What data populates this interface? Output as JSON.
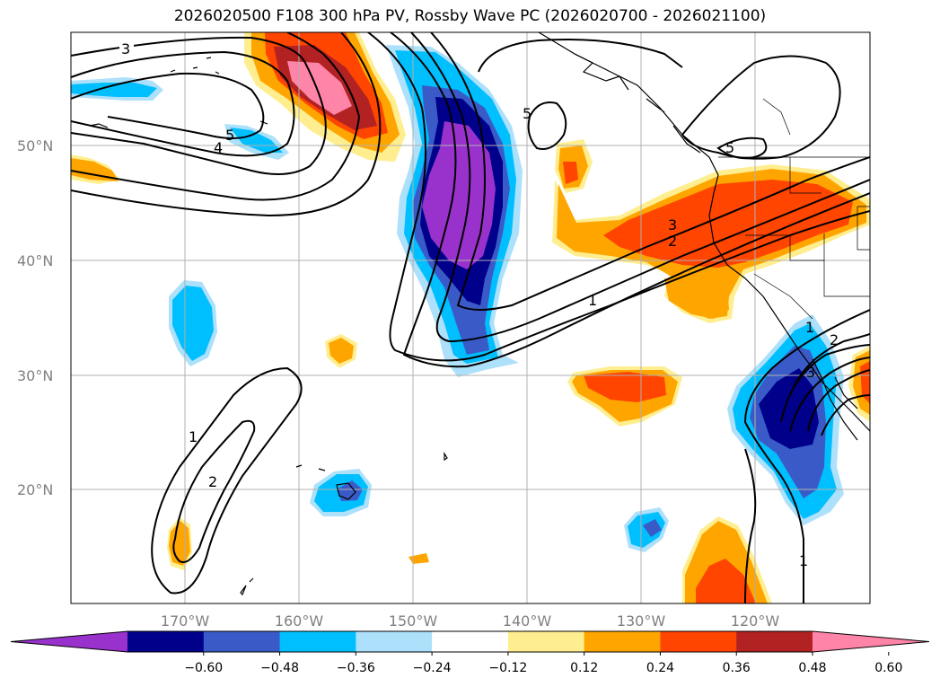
{
  "title": "2026020500 F108 300 hPa PV, Rossby Wave PC (2026020700 - 2026021100)",
  "lat_labels": [
    "50°N",
    "40°N",
    "30°N",
    "20°N"
  ],
  "lon_labels": [
    "170°W",
    "160°W",
    "150°W",
    "140°W",
    "130°W",
    "120°W"
  ],
  "colorbar": {
    "colors": [
      "#9932CC",
      "#00008B",
      "#3A5BC7",
      "#00BFFF",
      "#ADE0FA",
      "#FFFFFF",
      "#FFEE8F",
      "#FFA500",
      "#FF4500",
      "#B22222",
      "#FF85A8"
    ],
    "ticks": [
      "−0.60",
      "−0.48",
      "−0.36",
      "−0.24",
      "−0.12",
      "0.12",
      "0.24",
      "0.36",
      "0.48",
      "0.60"
    ]
  },
  "contour_labels": [
    {
      "text": "3",
      "id": "c3-nw"
    },
    {
      "text": "5",
      "id": "c5-w"
    },
    {
      "text": "4",
      "id": "c4-w"
    },
    {
      "text": "5",
      "id": "c5-mid"
    },
    {
      "text": "5",
      "id": "c5-coast"
    },
    {
      "text": "3",
      "id": "c3-mid"
    },
    {
      "text": "2",
      "id": "c2-mid"
    },
    {
      "text": "1",
      "id": "c1-mid"
    },
    {
      "text": "1",
      "id": "c1-sw"
    },
    {
      "text": "2",
      "id": "c2-sw"
    },
    {
      "text": "1",
      "id": "c1-se"
    },
    {
      "text": "2",
      "id": "c2-se"
    },
    {
      "text": "3",
      "id": "c3-se"
    },
    {
      "text": "1",
      "id": "c1-s"
    }
  ]
}
